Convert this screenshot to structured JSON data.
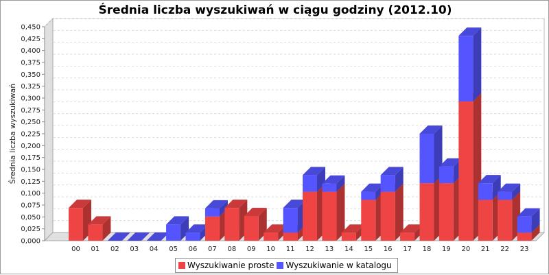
{
  "chart_data": {
    "type": "bar",
    "stacked": true,
    "three_d": true,
    "title": "Średnia liczba wyszukiwań w ciągu godziny (2012.10)",
    "ylabel": "Średnia liczba wyszukiwań",
    "xlabel": "",
    "ylim": [
      0,
      0.45
    ],
    "yticks": [
      "0,000",
      "0,025",
      "0,050",
      "0,075",
      "0,100",
      "0,125",
      "0,150",
      "0,175",
      "0,200",
      "0,225",
      "0,250",
      "0,275",
      "0,300",
      "0,325",
      "0,350",
      "0,375",
      "0,400",
      "0,425",
      "0,450"
    ],
    "categories": [
      "00",
      "01",
      "02",
      "03",
      "04",
      "05",
      "06",
      "07",
      "08",
      "09",
      "10",
      "11",
      "12",
      "13",
      "14",
      "15",
      "16",
      "17",
      "18",
      "19",
      "20",
      "21",
      "22",
      "23"
    ],
    "series": [
      {
        "name": "Wyszukiwanie proste",
        "color": "#ef4444",
        "values": [
          0.069,
          0.034,
          0,
          0,
          0,
          0,
          0,
          0.051,
          0.069,
          0.052,
          0.017,
          0.017,
          0.103,
          0.103,
          0.017,
          0.086,
          0.103,
          0.017,
          0.121,
          0.121,
          0.293,
          0.086,
          0.086,
          0.017
        ]
      },
      {
        "name": "Wyszukiwanie w katalogu",
        "color": "#5555ff",
        "values": [
          0,
          0,
          0,
          0,
          0,
          0.034,
          0.017,
          0.017,
          0,
          0,
          0,
          0.052,
          0.035,
          0.017,
          0,
          0.017,
          0.035,
          0,
          0.104,
          0.035,
          0.138,
          0.035,
          0.017,
          0.034
        ]
      }
    ],
    "grid": true,
    "legend_position": "bottom"
  }
}
